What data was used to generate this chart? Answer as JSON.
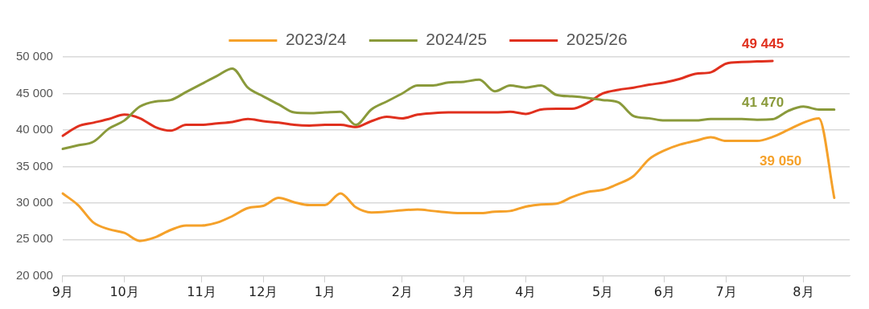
{
  "chart_data": {
    "type": "line",
    "ylim": [
      20000,
      50000
    ],
    "categories": [
      "9月",
      null,
      null,
      null,
      "10月",
      null,
      null,
      null,
      null,
      "11月",
      null,
      null,
      null,
      "12月",
      null,
      null,
      null,
      "1月",
      null,
      null,
      null,
      null,
      "2月",
      null,
      null,
      null,
      "3月",
      null,
      null,
      null,
      "4月",
      null,
      null,
      null,
      null,
      "5月",
      null,
      null,
      null,
      "6月",
      null,
      null,
      null,
      "7月",
      null,
      null,
      null,
      null,
      "8月",
      null,
      null,
      null
    ],
    "yticks": [
      {
        "value": 20000,
        "label": "20 000"
      },
      {
        "value": 25000,
        "label": "25 000"
      },
      {
        "value": 30000,
        "label": "30 000"
      },
      {
        "value": 35000,
        "label": "35 000"
      },
      {
        "value": 40000,
        "label": "40 000"
      },
      {
        "value": 45000,
        "label": "45 000"
      },
      {
        "value": 50000,
        "label": "50 000"
      }
    ],
    "series": [
      {
        "name": "2023/24",
        "color": "#f5a12a",
        "values": [
          31300,
          29700,
          27300,
          26400,
          25900,
          24800,
          25300,
          26300,
          26900,
          26900,
          27300,
          28200,
          29300,
          29600,
          30700,
          30100,
          29700,
          29700,
          31300,
          29400,
          28700,
          28800,
          29000,
          29100,
          28900,
          28700,
          28600,
          28600,
          28800,
          28900,
          29500,
          29800,
          29900,
          30800,
          31500,
          31800,
          32600,
          33700,
          36000,
          37200,
          38000,
          38500,
          39000,
          38500,
          38500,
          38500,
          39050,
          40000,
          41000,
          41600,
          30700,
          null
        ]
      },
      {
        "name": "2024/25",
        "color": "#8a9a3b",
        "values": [
          37400,
          37900,
          38400,
          40200,
          41300,
          43200,
          43900,
          44100,
          45200,
          46300,
          47400,
          48400,
          45800,
          44600,
          43500,
          42400,
          42300,
          42400,
          42500,
          40700,
          42800,
          43900,
          45000,
          46100,
          46100,
          46500,
          46600,
          46900,
          45300,
          46100,
          45800,
          46100,
          44800,
          44600,
          44400,
          44100,
          43800,
          41900,
          41600,
          41300,
          41300,
          41300,
          41500,
          41500,
          41500,
          41400,
          41470,
          42600,
          43200,
          42800,
          42800,
          null
        ]
      },
      {
        "name": "2025/26",
        "color": "#e0301e",
        "values": [
          39200,
          40500,
          41000,
          41500,
          42100,
          41600,
          40400,
          39900,
          40700,
          40700,
          40900,
          41100,
          41500,
          41200,
          41000,
          40700,
          40600,
          40700,
          40700,
          40400,
          41200,
          41800,
          41600,
          42100,
          42300,
          42400,
          42400,
          42400,
          42400,
          42500,
          42200,
          42800,
          42900,
          42900,
          43700,
          45000,
          45500,
          45800,
          46200,
          46500,
          47000,
          47700,
          47900,
          49100,
          49300,
          49400,
          49445,
          null,
          null,
          null,
          null,
          null
        ]
      }
    ],
    "annotations": [
      {
        "text": "39 050",
        "y": 39050
      },
      {
        "text": "41 470",
        "y": 41470
      },
      {
        "text": "49 445",
        "y": 49445
      }
    ],
    "grid": "y",
    "legend": "top",
    "marker": "none",
    "line_style": "solid"
  }
}
